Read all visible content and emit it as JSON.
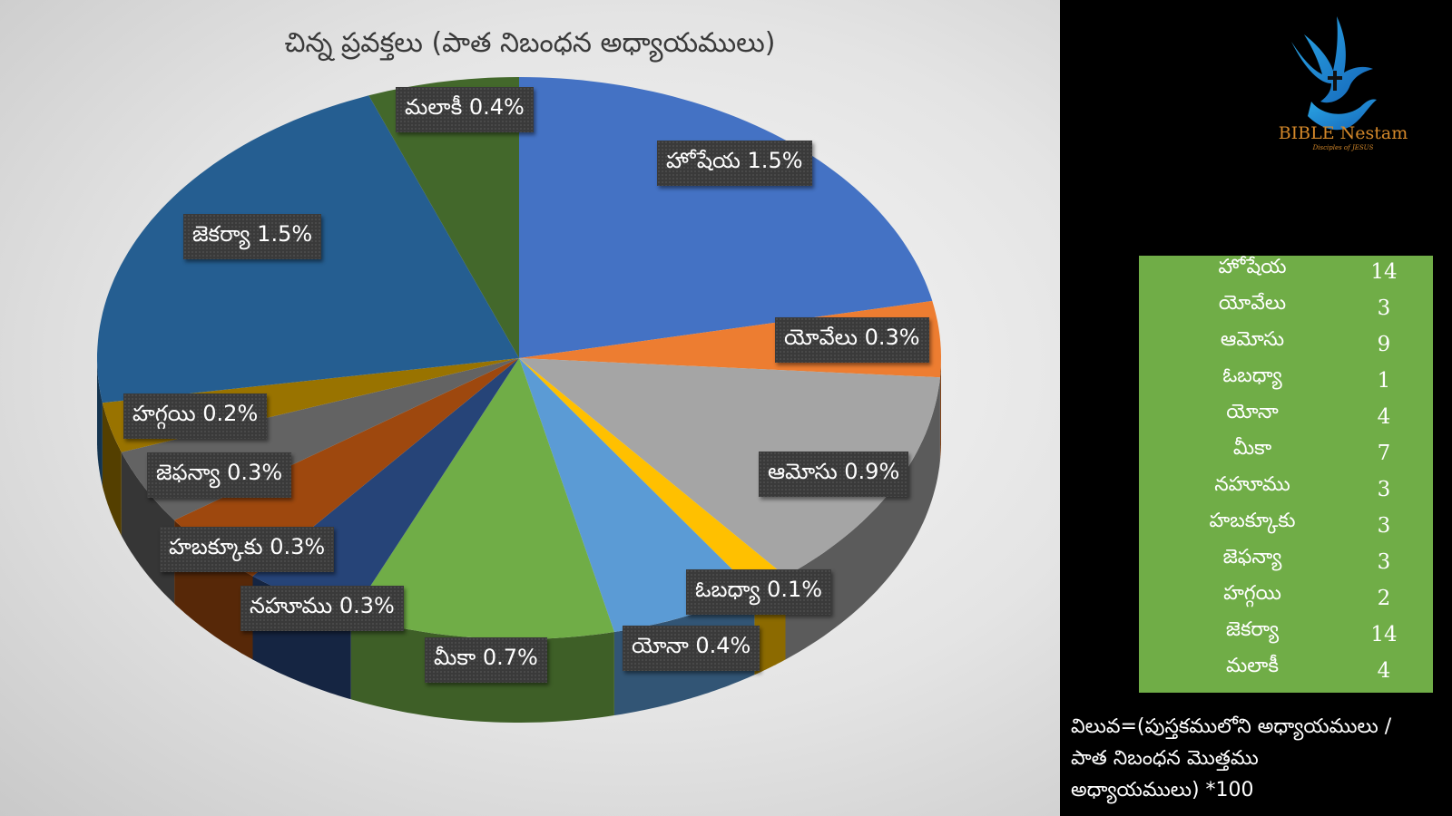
{
  "chart_data": {
    "type": "pie",
    "title": "చిన్న ప్రవక్తలు (పాత నిబంధన అధ్యాయములు)",
    "categories": [
      "హోషేయ",
      "యోవేలు",
      "ఆమోసు",
      "ఓబధ్యా",
      "యోనా",
      "మీకా",
      "నహూము",
      "హబక్కూకు",
      "జెఫన్యా",
      "హగ్గయి",
      "జెకర్యా",
      "మలాకీ"
    ],
    "values": [
      1.5,
      0.3,
      0.9,
      0.1,
      0.4,
      0.7,
      0.3,
      0.3,
      0.3,
      0.2,
      1.5,
      0.4
    ],
    "labels": [
      "హోషేయ 1.5%",
      "యోవేలు 0.3%",
      "ఆమోసు 0.9%",
      "ఓబధ్యా 0.1%",
      "యోనా 0.4%",
      "మీకా 0.7%",
      "నహూము 0.3%",
      "హబక్కూకు 0.3%",
      "జెఫన్యా 0.3%",
      "హగ్గయి 0.2%",
      "జెకర్యా 1.5%",
      "మలాకీ 0.4%"
    ],
    "chapters": [
      14,
      3,
      9,
      1,
      4,
      7,
      3,
      3,
      3,
      2,
      14,
      4
    ],
    "colors": [
      "#4472c4",
      "#ed7d31",
      "#a5a5a5",
      "#ffc000",
      "#5b9bd5",
      "#70ad47",
      "#264478",
      "#9e480e",
      "#636363",
      "#997300",
      "#255e91",
      "#43682b"
    ],
    "style": "3d"
  },
  "table": {
    "rows": [
      {
        "name": "హోషేయ",
        "value": "14"
      },
      {
        "name": "యోవేలు",
        "value": "3"
      },
      {
        "name": "ఆమోసు",
        "value": "9"
      },
      {
        "name": "ఓబధ్యా",
        "value": "1"
      },
      {
        "name": "యోనా",
        "value": "4"
      },
      {
        "name": "మీకా",
        "value": "7"
      },
      {
        "name": "నహూము",
        "value": "3"
      },
      {
        "name": "హబక్కూకు",
        "value": "3"
      },
      {
        "name": "జెఫన్యా",
        "value": "3"
      },
      {
        "name": "హగ్గయి",
        "value": "2"
      },
      {
        "name": "జెకర్యా",
        "value": "14"
      },
      {
        "name": "మలాకీ",
        "value": "4"
      }
    ]
  },
  "formula": {
    "line1": "విలువ=(పుస్తకములోని అధ్యాయములు /",
    "line2": "పాత నిబంధన మొత్తము",
    "line3": "అధ్యాయములు) *100"
  },
  "logo": {
    "name": "BIBLE Nestam",
    "subtitle": "Disciples of JESUS",
    "icon": "dove-cross-hand-icon"
  }
}
